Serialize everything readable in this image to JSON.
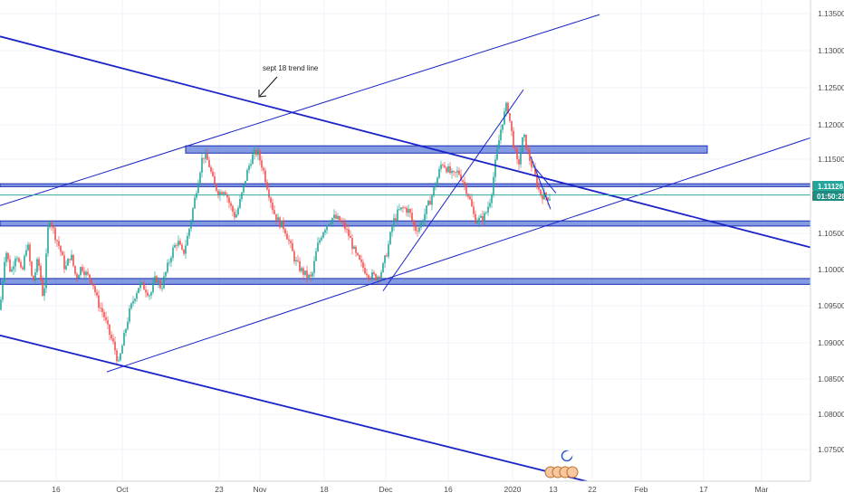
{
  "colors": {
    "background": "#ffffff",
    "grid": "#f0f3fa",
    "axis": "#d6d6d6",
    "up": "#26a69a",
    "down": "#ef5350",
    "trendline": "#1a24c8",
    "zone_fill": "#5b78d8",
    "zone_border": "#1a2fb0",
    "price_line": "#26a69a",
    "price_tag": "#26a69a",
    "timer_tag": "#1e8a80"
  },
  "chart_data": {
    "type": "candlestick",
    "title": "",
    "xlabel": "",
    "ylabel": "",
    "y_axis_side": "right",
    "grid": true,
    "ylim": [
      1.072,
      1.138
    ],
    "y_ticks": [
      "1.07500",
      "1.08000",
      "1.08500",
      "1.09000",
      "1.09500",
      "1.10000",
      "1.10500",
      "1.11000",
      "1.11500",
      "1.12000",
      "1.12500",
      "1.13000",
      "1.13500"
    ],
    "x_ticks": [
      "16",
      "Oct",
      "23",
      "Nov",
      "18",
      "Dec",
      "16",
      "2020",
      "13",
      "22",
      "Feb",
      "17",
      "Mar"
    ],
    "current_price": "1.11126",
    "countdown": "01:50:28",
    "annotation": "sept 18 trend line",
    "candle_anchors": [
      [
        0,
        1.0955
      ],
      [
        6,
        1.104
      ],
      [
        12,
        1.1005
      ],
      [
        18,
        1.1035
      ],
      [
        24,
        1.1002
      ],
      [
        30,
        1.105
      ],
      [
        36,
        1.099
      ],
      [
        42,
        1.1025
      ],
      [
        48,
        1.0968
      ],
      [
        54,
        1.1085
      ],
      [
        60,
        1.106
      ],
      [
        66,
        1.104
      ],
      [
        72,
        1.101
      ],
      [
        78,
        1.1032
      ],
      [
        84,
        1.0999
      ],
      [
        90,
        1.1015
      ],
      [
        96,
        1.1002
      ],
      [
        102,
        1.0995
      ],
      [
        108,
        1.0965
      ],
      [
        114,
        1.095
      ],
      [
        120,
        1.0925
      ],
      [
        126,
        1.0905
      ],
      [
        131,
        1.088
      ],
      [
        136,
        1.0912
      ],
      [
        142,
        1.0948
      ],
      [
        148,
        1.0972
      ],
      [
        154,
        1.099
      ],
      [
        160,
        1.0985
      ],
      [
        166,
        1.0975
      ],
      [
        172,
        1.1
      ],
      [
        178,
        1.0985
      ],
      [
        184,
        1.101
      ],
      [
        190,
        1.1035
      ],
      [
        196,
        1.105
      ],
      [
        202,
        1.103
      ],
      [
        208,
        1.106
      ],
      [
        214,
        1.11
      ],
      [
        219,
        1.1135
      ],
      [
        224,
        1.1168
      ],
      [
        230,
        1.1158
      ],
      [
        236,
        1.1128
      ],
      [
        242,
        1.1115
      ],
      [
        248,
        1.1122
      ],
      [
        254,
        1.1098
      ],
      [
        260,
        1.1082
      ],
      [
        266,
        1.1108
      ],
      [
        272,
        1.114
      ],
      [
        278,
        1.1165
      ],
      [
        284,
        1.1172
      ],
      [
        290,
        1.115
      ],
      [
        296,
        1.112
      ],
      [
        302,
        1.109
      ],
      [
        308,
        1.1075
      ],
      [
        314,
        1.1068
      ],
      [
        320,
        1.1045
      ],
      [
        326,
        1.1022
      ],
      [
        332,
        1.101
      ],
      [
        338,
        1.1002
      ],
      [
        344,
        1.0998
      ],
      [
        350,
        1.104
      ],
      [
        356,
        1.1062
      ],
      [
        362,
        1.1075
      ],
      [
        368,
        1.1082
      ],
      [
        374,
        1.1078
      ],
      [
        380,
        1.107
      ],
      [
        386,
        1.1055
      ],
      [
        392,
        1.1032
      ],
      [
        398,
        1.1018
      ],
      [
        404,
        1.1008
      ],
      [
        410,
        1.1002
      ],
      [
        416,
        1.1
      ],
      [
        422,
        1.101
      ],
      [
        428,
        1.1038
      ],
      [
        434,
        1.1075
      ],
      [
        440,
        1.109
      ],
      [
        446,
        1.1095
      ],
      [
        452,
        1.109
      ],
      [
        458,
        1.1065
      ],
      [
        464,
        1.107
      ],
      [
        470,
        1.109
      ],
      [
        476,
        1.1108
      ],
      [
        482,
        1.1132
      ],
      [
        488,
        1.1158
      ],
      [
        494,
        1.1148
      ],
      [
        500,
        1.1138
      ],
      [
        506,
        1.1145
      ],
      [
        512,
        1.113
      ],
      [
        518,
        1.111
      ],
      [
        524,
        1.108
      ],
      [
        530,
        1.1078
      ],
      [
        536,
        1.1085
      ],
      [
        542,
        1.111
      ],
      [
        548,
        1.1165
      ],
      [
        554,
        1.121
      ],
      [
        560,
        1.1238
      ],
      [
        566,
        1.119
      ],
      [
        572,
        1.115
      ],
      [
        578,
        1.1195
      ],
      [
        584,
        1.1165
      ],
      [
        590,
        1.1142
      ],
      [
        596,
        1.1115
      ],
      [
        602,
        1.111
      ],
      [
        608,
        1.111
      ]
    ],
    "horizontal_zones": [
      {
        "x0": 205,
        "x1": 781,
        "y_top": 1.118,
        "y_bottom": 1.117
      },
      {
        "x0": 0,
        "x1": 932,
        "y_top": 1.1128,
        "y_bottom": 1.1124
      },
      {
        "x0": 0,
        "x1": 932,
        "y_top": 1.1077,
        "y_bottom": 1.107
      },
      {
        "x0": 0,
        "x1": 932,
        "y_top": 1.0998,
        "y_bottom": 1.099
      }
    ],
    "trendlines": [
      {
        "x1": 0,
        "y1": 1.133,
        "x2": 897,
        "y2": 1.104,
        "width": 1.8
      },
      {
        "x1": 0,
        "y1": 1.092,
        "x2": 670,
        "y2": 1.0713,
        "width": 1.8
      },
      {
        "x1": 0,
        "y1": 1.1098,
        "x2": 662,
        "y2": 1.136,
        "width": 1.0
      },
      {
        "x1": 118,
        "y1": 1.087,
        "x2": 900,
        "y2": 1.1193,
        "width": 1.0
      },
      {
        "x1": 423,
        "y1": 1.0981,
        "x2": 578,
        "y2": 1.1257,
        "width": 1.0
      },
      {
        "x1": 592,
        "y1": 1.1148,
        "x2": 614,
        "y2": 1.1115,
        "width": 1.0
      },
      {
        "x1": 586,
        "y1": 1.1165,
        "x2": 608,
        "y2": 1.1093,
        "width": 1.0
      }
    ]
  }
}
